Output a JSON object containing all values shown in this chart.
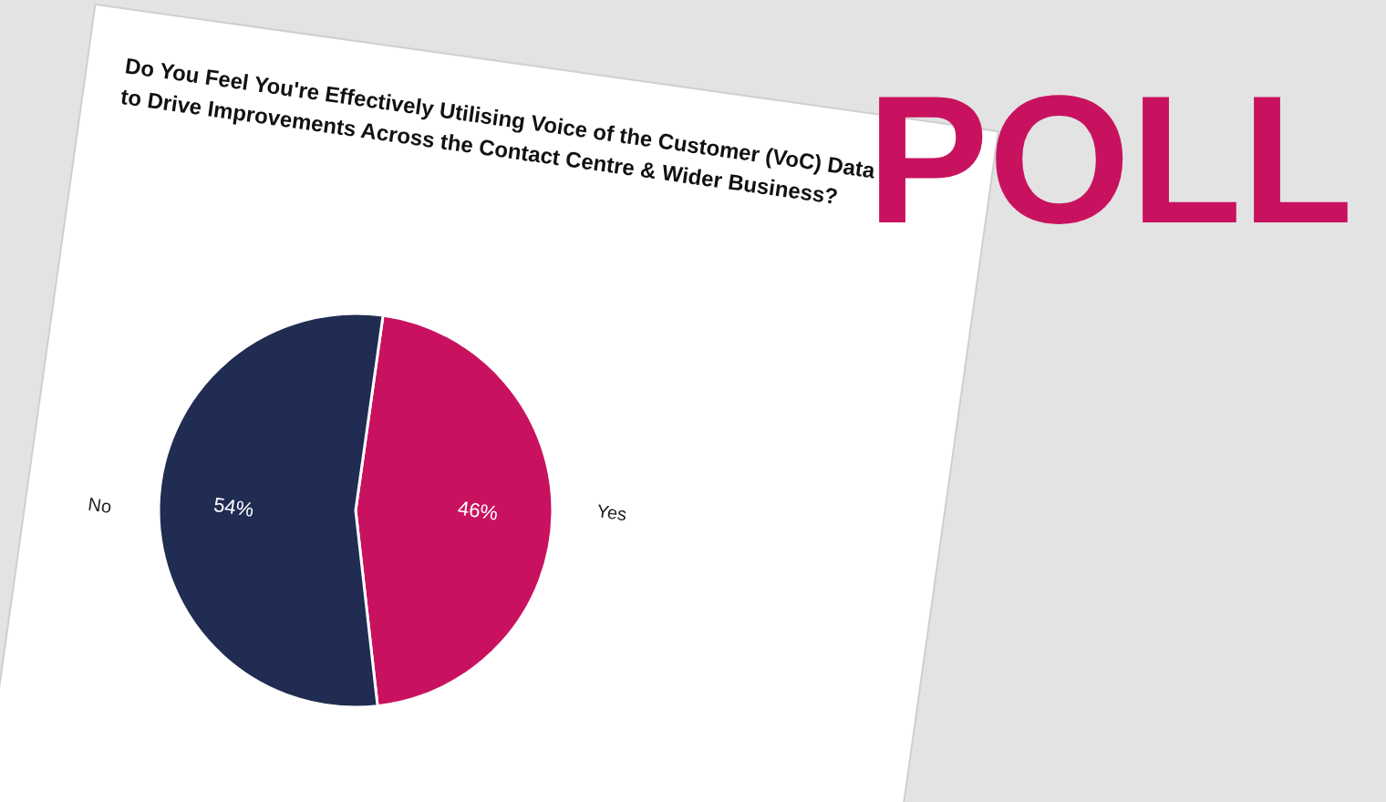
{
  "chart_data": {
    "type": "pie",
    "title": "Do You Feel You're Effectively Utilising Voice of the Customer (VoC) Data to Drive Improvements Across the Contact Centre & Wider Business?",
    "categories": [
      "Yes",
      "No"
    ],
    "values": [
      46,
      54
    ],
    "colors": [
      "#c8125f",
      "#202c52"
    ],
    "value_labels": [
      "46%",
      "54%"
    ],
    "annotations": [
      "POLL"
    ]
  }
}
